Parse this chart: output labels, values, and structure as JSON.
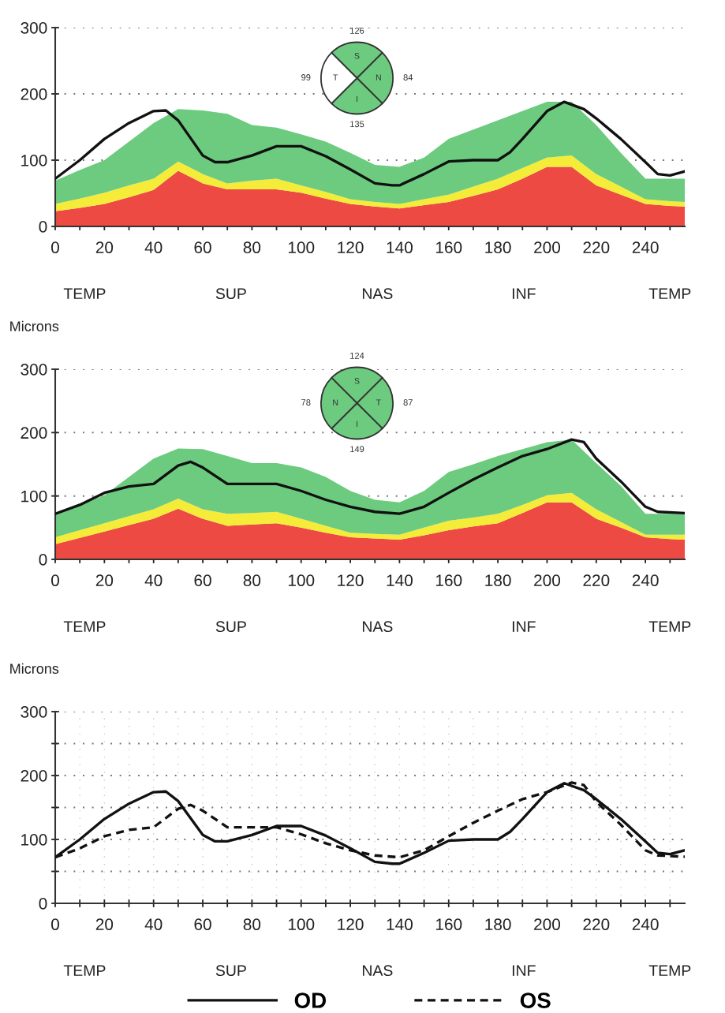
{
  "chart_data": [
    {
      "type": "area",
      "stacked": true,
      "grid": "y",
      "xlim": [
        0,
        256
      ],
      "ylim": [
        0,
        300
      ],
      "xticks": [
        0,
        {
          "value": 10,
          "label": null
        },
        20,
        {
          "value": 30,
          "label": null
        },
        40,
        {
          "value": 50,
          "label": null
        },
        60,
        {
          "value": 70,
          "label": null
        },
        80,
        {
          "value": 90,
          "label": null
        },
        100,
        {
          "value": 110,
          "label": null
        },
        120,
        {
          "value": 130,
          "label": null
        },
        140,
        {
          "value": 150,
          "label": null
        },
        160,
        {
          "value": 170,
          "label": null
        },
        180,
        {
          "value": 190,
          "label": null
        },
        200,
        {
          "value": 210,
          "label": null
        },
        220,
        {
          "value": 230,
          "label": null
        },
        240,
        {
          "value": 250,
          "label": null
        }
      ],
      "yticks": [
        0,
        100,
        200,
        300
      ],
      "annotations": [
        "TEMP",
        "SUP",
        "NAS",
        "INF",
        "TEMP"
      ],
      "x": [
        0,
        10,
        20,
        30,
        40,
        50,
        60,
        70,
        80,
        90,
        100,
        110,
        120,
        130,
        140,
        150,
        160,
        170,
        180,
        190,
        200,
        210,
        220,
        230,
        240,
        250,
        256
      ],
      "series": [
        {
          "color": "#ee4a44",
          "values": [
            23,
            28,
            34,
            44,
            55,
            84,
            65,
            56,
            56,
            56,
            51,
            42,
            34,
            30,
            27,
            32,
            37,
            46,
            56,
            72,
            90,
            90,
            62,
            48,
            34,
            31,
            30
          ]
        },
        {
          "color": "#f4ec38",
          "values": [
            11,
            14,
            17,
            18,
            17,
            14,
            14,
            9,
            13,
            16,
            11,
            10,
            7,
            7,
            7,
            9,
            11,
            14,
            16,
            16,
            14,
            17,
            17,
            12,
            7,
            7,
            7
          ]
        },
        {
          "color": "#6ccb7e",
          "values": [
            35,
            43,
            49,
            66,
            84,
            79,
            96,
            105,
            84,
            77,
            77,
            76,
            70,
            56,
            56,
            63,
            84,
            86,
            88,
            86,
            84,
            81,
            74,
            51,
            31,
            34,
            35
          ]
        },
        {
          "type": "line",
          "color": "#111111",
          "x": [
            0,
            10,
            20,
            30,
            40,
            45,
            50,
            60,
            65,
            70,
            80,
            90,
            100,
            110,
            120,
            130,
            137,
            140,
            150,
            160,
            170,
            180,
            185,
            190,
            200,
            207,
            215,
            220,
            230,
            240,
            245,
            250,
            256
          ],
          "values": [
            72,
            100,
            132,
            156,
            174,
            175,
            160,
            107,
            97,
            97,
            107,
            121,
            121,
            106,
            86,
            65,
            62,
            62,
            79,
            98,
            100,
            100,
            112,
            132,
            174,
            188,
            177,
            163,
            132,
            97,
            79,
            77,
            83
          ]
        }
      ]
    },
    {
      "type": "other",
      "data_labels": true,
      "categories": [
        "S",
        "N",
        "I",
        "T"
      ],
      "values": [
        126,
        84,
        135,
        99
      ],
      "colors": [
        "#6ccb7e",
        "#6ccb7e",
        "#6ccb7e",
        "#ffffff"
      ]
    },
    {
      "type": "area",
      "stacked": true,
      "grid": "y",
      "ylabel": "Microns",
      "xlim": [
        0,
        256
      ],
      "ylim": [
        0,
        300
      ],
      "xticks": [
        0,
        {
          "value": 10,
          "label": null
        },
        20,
        {
          "value": 30,
          "label": null
        },
        40,
        {
          "value": 50,
          "label": null
        },
        60,
        {
          "value": 70,
          "label": null
        },
        80,
        {
          "value": 90,
          "label": null
        },
        100,
        {
          "value": 110,
          "label": null
        },
        120,
        {
          "value": 130,
          "label": null
        },
        140,
        {
          "value": 150,
          "label": null
        },
        160,
        {
          "value": 170,
          "label": null
        },
        180,
        {
          "value": 190,
          "label": null
        },
        200,
        {
          "value": 210,
          "label": null
        },
        220,
        {
          "value": 230,
          "label": null
        },
        240,
        {
          "value": 250,
          "label": null
        }
      ],
      "yticks": [
        0,
        100,
        200,
        300
      ],
      "annotations": [
        "TEMP",
        "SUP",
        "NAS",
        "INF",
        "TEMP"
      ],
      "x": [
        0,
        10,
        20,
        30,
        40,
        50,
        60,
        70,
        80,
        90,
        100,
        110,
        120,
        130,
        140,
        150,
        160,
        170,
        180,
        190,
        200,
        210,
        220,
        230,
        240,
        250,
        256
      ],
      "series": [
        {
          "color": "#ee4a44",
          "values": [
            24,
            34,
            44,
            54,
            64,
            80,
            64,
            53,
            55,
            57,
            50,
            42,
            35,
            33,
            31,
            38,
            46,
            52,
            57,
            73,
            90,
            90,
            64,
            50,
            35,
            32,
            31
          ]
        },
        {
          "color": "#f4ec38",
          "values": [
            11,
            12,
            13,
            14,
            15,
            16,
            15,
            19,
            18,
            18,
            14,
            11,
            7,
            7,
            8,
            12,
            15,
            14,
            15,
            13,
            11,
            15,
            15,
            9,
            4,
            7,
            8
          ]
        },
        {
          "color": "#6ccb7e",
          "values": [
            37,
            40,
            44,
            62,
            80,
            79,
            95,
            91,
            79,
            77,
            81,
            77,
            66,
            54,
            51,
            58,
            77,
            84,
            91,
            88,
            84,
            84,
            73,
            57,
            33,
            33,
            33
          ]
        },
        {
          "type": "line",
          "color": "#111111",
          "x": [
            0,
            10,
            20,
            30,
            40,
            50,
            55,
            60,
            70,
            80,
            90,
            100,
            110,
            120,
            130,
            140,
            150,
            160,
            170,
            180,
            190,
            200,
            210,
            215,
            220,
            230,
            240,
            245,
            256
          ],
          "values": [
            72,
            86,
            105,
            115,
            119,
            148,
            154,
            145,
            119,
            119,
            119,
            108,
            94,
            83,
            75,
            72,
            83,
            105,
            126,
            145,
            163,
            174,
            189,
            185,
            159,
            123,
            83,
            75,
            73
          ]
        }
      ]
    },
    {
      "type": "other",
      "data_labels": true,
      "categories": [
        "S",
        "T",
        "I",
        "N"
      ],
      "values": [
        124,
        87,
        149,
        78
      ],
      "colors": [
        "#6ccb7e",
        "#6ccb7e",
        "#6ccb7e",
        "#6ccb7e"
      ]
    },
    {
      "type": "line",
      "grid": true,
      "legend": "bottom",
      "ylabel": "Microns",
      "xlim": [
        0,
        256
      ],
      "ylim": [
        0,
        300
      ],
      "xticks": [
        0,
        {
          "value": 10,
          "label": null
        },
        20,
        {
          "value": 30,
          "label": null
        },
        40,
        {
          "value": 50,
          "label": null
        },
        60,
        {
          "value": 70,
          "label": null
        },
        80,
        {
          "value": 90,
          "label": null
        },
        100,
        {
          "value": 110,
          "label": null
        },
        120,
        {
          "value": 130,
          "label": null
        },
        140,
        {
          "value": 150,
          "label": null
        },
        160,
        {
          "value": 170,
          "label": null
        },
        180,
        {
          "value": 190,
          "label": null
        },
        200,
        {
          "value": 210,
          "label": null
        },
        220,
        {
          "value": 230,
          "label": null
        },
        240,
        {
          "value": 250,
          "label": null
        }
      ],
      "yticks": [
        0,
        {
          "value": 50,
          "label": null
        },
        100,
        {
          "value": 150,
          "label": null
        },
        200,
        {
          "value": 250,
          "label": null
        },
        300
      ],
      "annotations": [
        "TEMP",
        "SUP",
        "NAS",
        "INF",
        "TEMP"
      ],
      "series": [
        {
          "name": "OD",
          "color": "#111111",
          "line_style": "solid",
          "x": [
            0,
            10,
            20,
            30,
            40,
            45,
            50,
            60,
            65,
            70,
            80,
            90,
            100,
            110,
            120,
            130,
            137,
            140,
            150,
            160,
            170,
            180,
            185,
            190,
            200,
            207,
            215,
            220,
            230,
            240,
            245,
            250,
            256
          ],
          "values": [
            72,
            100,
            132,
            156,
            174,
            175,
            160,
            107,
            97,
            97,
            107,
            121,
            121,
            106,
            86,
            65,
            62,
            62,
            79,
            98,
            100,
            100,
            112,
            132,
            174,
            188,
            177,
            163,
            132,
            97,
            79,
            77,
            83
          ]
        },
        {
          "name": "OS",
          "color": "#111111",
          "line_style": "dashed",
          "x": [
            0,
            10,
            20,
            30,
            40,
            50,
            55,
            60,
            70,
            80,
            90,
            100,
            110,
            120,
            130,
            140,
            150,
            160,
            170,
            180,
            190,
            200,
            210,
            215,
            220,
            230,
            240,
            245,
            256
          ],
          "values": [
            72,
            86,
            105,
            115,
            119,
            148,
            154,
            145,
            119,
            119,
            119,
            108,
            94,
            83,
            75,
            72,
            83,
            105,
            126,
            145,
            163,
            174,
            189,
            185,
            159,
            123,
            83,
            75,
            73
          ]
        }
      ]
    }
  ]
}
